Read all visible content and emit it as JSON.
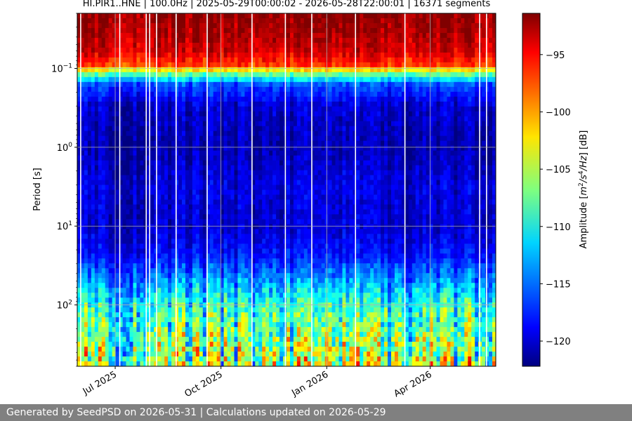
{
  "chart_data": {
    "type": "heatmap",
    "title": "HI.PIR1..HNE | 100.0Hz | 2025-05-29T00:00:02 - 2026-05-28T22:00:01 | 16371 segments",
    "xlabel": "",
    "ylabel": "Period [s]",
    "x_range": [
      "2025-05-29",
      "2026-05-28"
    ],
    "x_ticks": [
      {
        "date": "2025-07-01",
        "label": "Jul 2025"
      },
      {
        "date": "2025-10-01",
        "label": "Oct 2025"
      },
      {
        "date": "2026-01-01",
        "label": "Jan 2026"
      },
      {
        "date": "2026-04-01",
        "label": "Apr 2026"
      }
    ],
    "y_scale": "log",
    "y_inverted": true,
    "y_range": [
      0.02,
      600
    ],
    "y_ticks": [
      {
        "value": 0.1,
        "base": "10",
        "exp": "−1"
      },
      {
        "value": 1,
        "base": "10",
        "exp": "0"
      },
      {
        "value": 10,
        "base": "10",
        "exp": "1"
      },
      {
        "value": 100,
        "base": "10",
        "exp": "2"
      }
    ],
    "grid": true,
    "colormap": "jet",
    "colorbar": {
      "label_pre": "Amplitude [",
      "label_m": "m",
      "label_sup1": "2",
      "label_mid": "/s",
      "label_sup2": "4",
      "label_hz": "/Hz",
      "label_post": "] [dB]",
      "range": [
        -122.2,
        -91.4
      ],
      "ticks": [
        {
          "value": -95,
          "label": "−95"
        },
        {
          "value": -100,
          "label": "−100"
        },
        {
          "value": -105,
          "label": "−105"
        },
        {
          "value": -110,
          "label": "−110"
        },
        {
          "value": -115,
          "label": "−115"
        },
        {
          "value": -120,
          "label": "−120"
        }
      ]
    },
    "amplitude_profile": [
      {
        "period": 0.02,
        "db": -92
      },
      {
        "period": 0.03,
        "db": -92.5
      },
      {
        "period": 0.06,
        "db": -94
      },
      {
        "period": 0.09,
        "db": -97
      },
      {
        "period": 0.12,
        "db": -108
      },
      {
        "period": 0.16,
        "db": -116
      },
      {
        "period": 0.3,
        "db": -120
      },
      {
        "period": 1,
        "db": -121
      },
      {
        "period": 3,
        "db": -119.5
      },
      {
        "period": 10,
        "db": -120
      },
      {
        "period": 25,
        "db": -118
      },
      {
        "period": 50,
        "db": -114
      },
      {
        "period": 100,
        "db": -110
      },
      {
        "period": 300,
        "db": -107
      },
      {
        "period": 600,
        "db": -106
      }
    ],
    "data_gaps": [
      "2025-06-01",
      "2025-07-05",
      "2025-07-28",
      "2025-07-31",
      "2025-08-06",
      "2025-08-23",
      "2025-09-19",
      "2025-10-28",
      "2025-11-26",
      "2025-12-19",
      "2026-01-26",
      "2026-03-10",
      "2026-05-14",
      "2026-05-20"
    ]
  },
  "footer": {
    "text": "Generated by SeedPSD on 2026-05-31 | Calculations updated on 2026-05-29"
  }
}
